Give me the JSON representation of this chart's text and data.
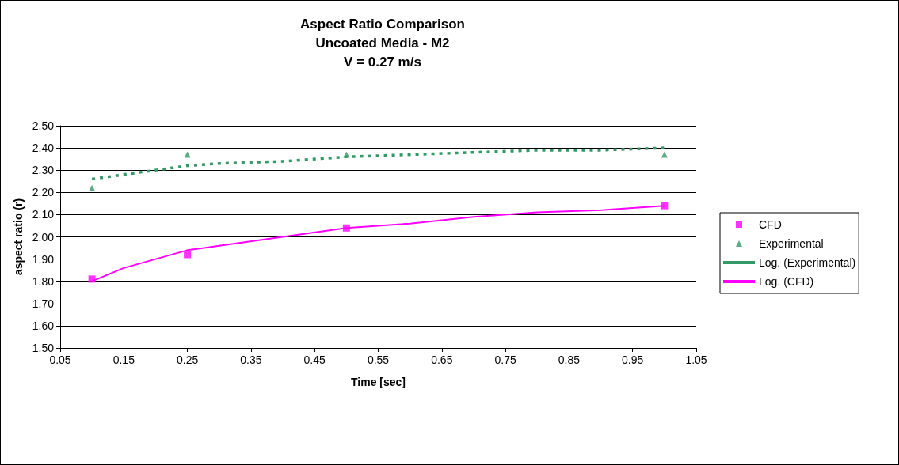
{
  "chart_data": {
    "type": "scatter",
    "title": "Aspect Ratio Comparison\nUncoated Media - M2\nV = 0.27 m/s",
    "xlabel": "Time [sec]",
    "ylabel": "aspect ratio (r)",
    "series": [
      {
        "name": "CFD",
        "type": "scatter",
        "color": "#ff00ff",
        "marker": "square",
        "x": [
          0.1,
          0.25,
          0.5,
          1.0
        ],
        "values": [
          1.81,
          1.92,
          2.04,
          2.14
        ]
      },
      {
        "name": "Experimental",
        "type": "scatter",
        "color": "#339966",
        "marker": "triangle",
        "x": [
          0.1,
          0.25,
          0.5,
          1.0
        ],
        "values": [
          2.22,
          2.37,
          2.37,
          2.37
        ]
      },
      {
        "name": "Log. (Experimental)",
        "type": "line",
        "color": "#339966",
        "marker": "none",
        "line_style": "dashed",
        "x": [
          0.1,
          0.15,
          0.2,
          0.25,
          0.3,
          0.4,
          0.5,
          0.6,
          0.7,
          0.8,
          0.9,
          1.0
        ],
        "values": [
          2.26,
          2.28,
          2.3,
          2.32,
          2.33,
          2.34,
          2.36,
          2.37,
          2.38,
          2.39,
          2.39,
          2.4
        ]
      },
      {
        "name": "Log. (CFD)",
        "type": "line",
        "color": "#ff00ff",
        "marker": "none",
        "line_style": "solid",
        "x": [
          0.1,
          0.15,
          0.2,
          0.25,
          0.3,
          0.4,
          0.5,
          0.6,
          0.7,
          0.8,
          0.9,
          1.0
        ],
        "values": [
          1.8,
          1.86,
          1.9,
          1.94,
          1.96,
          2.0,
          2.04,
          2.06,
          2.09,
          2.11,
          2.12,
          2.14
        ]
      }
    ],
    "xlim": [
      0.05,
      1.05
    ],
    "xticks": [
      0.05,
      0.15,
      0.25,
      0.35,
      0.45,
      0.55,
      0.65,
      0.75,
      0.85,
      0.95,
      1.05
    ],
    "ylim": [
      1.5,
      2.5
    ],
    "yticks": [
      {
        "value": 1.5,
        "label": "1.50"
      },
      {
        "value": 1.6,
        "label": "1.60"
      },
      {
        "value": 1.7,
        "label": "1.70"
      },
      {
        "value": 1.8,
        "label": "1.80"
      },
      {
        "value": 1.9,
        "label": "1.90"
      },
      {
        "value": 2.0,
        "label": "2.00"
      },
      {
        "value": 2.1,
        "label": "2.10"
      },
      {
        "value": 2.2,
        "label": "2.20"
      },
      {
        "value": 2.3,
        "label": "2.30"
      },
      {
        "value": 2.4,
        "label": "2.40"
      },
      {
        "value": 2.5,
        "label": "2.50"
      }
    ],
    "grid": "y",
    "legend": "right"
  }
}
